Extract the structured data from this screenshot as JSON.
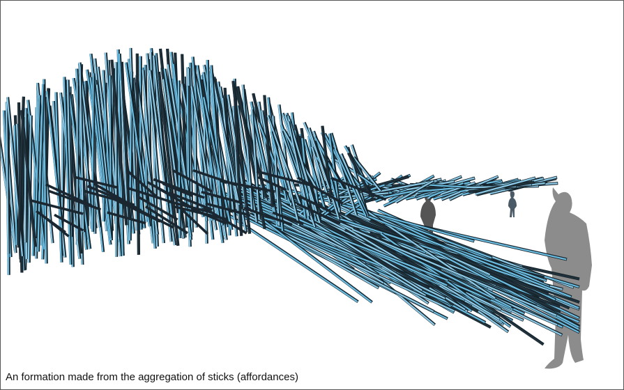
{
  "caption": "An formation made from the aggregation of sticks (affordances)"
}
